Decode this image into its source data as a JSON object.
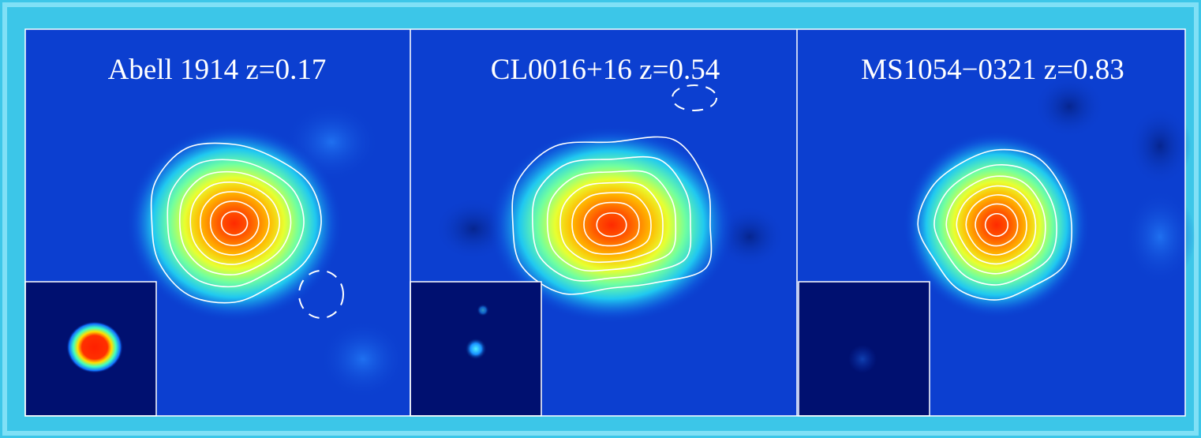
{
  "panels": [
    {
      "label": "Abell 1914 z=0.17"
    },
    {
      "label": "CL0016+16 z=0.54"
    },
    {
      "label": "MS1054−0321 z=0.83"
    }
  ]
}
